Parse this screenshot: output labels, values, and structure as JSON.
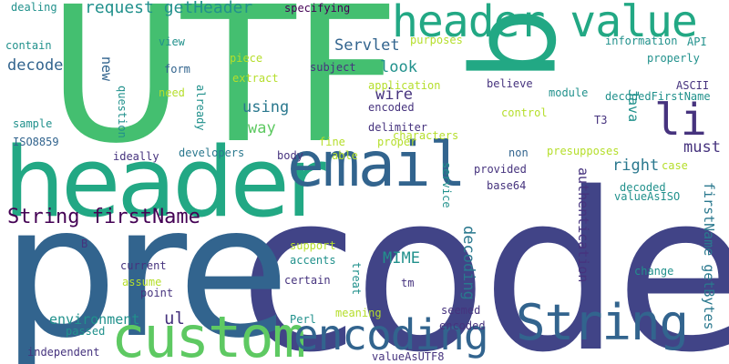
{
  "palette": {
    "dark_purple": "#46337e",
    "indigo": "#414487",
    "blue": "#32648e",
    "teal_blue": "#2a788e",
    "teal": "#21918c",
    "green_teal": "#22a884",
    "green": "#44bf70",
    "light_green": "#5ec962",
    "lime": "#b5de2b",
    "deep_purple": "#440154"
  },
  "words": {
    "code": "code",
    "pre": "pre",
    "utf": "UTF",
    "q": "q",
    "header": "header",
    "header_value": "header value",
    "email": "email",
    "custom": "custom",
    "encoding": "encoding",
    "string_big": "String",
    "string_firstname": "String firstName",
    "li": "li",
    "request_getheader": "request getHeader",
    "servlet": "Servlet",
    "decode": "decode",
    "look": "look",
    "using": "using",
    "way": "way",
    "must": "must",
    "right": "right",
    "wire": "wire",
    "mime": "MIME",
    "environment": "environment",
    "ul": "ul",
    "authentication": "authentication",
    "decoding": "decoding",
    "firstname_getbytes": "firstName getBytes",
    "java": "Java",
    "new": "new",
    "question": "question",
    "dealing": "dealing",
    "specifying": "specifying",
    "contain": "contain",
    "purposes": "purposes",
    "information": "information",
    "api": "API",
    "view": "view",
    "piece": "piece",
    "subject": "subject",
    "properly": "properly",
    "form": "form",
    "extract": "extract",
    "application": "application",
    "believe": "believe",
    "module": "module",
    "ascii": "ASCII",
    "need": "need",
    "already": "already",
    "decodedfirstname": "decodedFirstName",
    "encoded_1": "encoded",
    "control": "control",
    "sample": "sample",
    "delimiter": "delimiter",
    "t3": "T3",
    "iso8859": "ISO8859",
    "fine": "fine",
    "proper": "proper",
    "characters": "characters",
    "ideally": "ideally",
    "developers": "developers",
    "body": "body",
    "able": "able",
    "non": "non",
    "presupposes": "presupposes",
    "case": "case",
    "provided": "provided",
    "decoded": "decoded",
    "valueasiso": "valueAsISO",
    "base64": "base64",
    "service": "service",
    "support": "support",
    "b": "B",
    "current": "current",
    "accents": "accents",
    "assume": "assume",
    "point": "point",
    "certain": "certain",
    "treat": "treat",
    "tm": "tm",
    "change": "change",
    "perl": "Perl",
    "meaning": "meaning",
    "seemed": "seemed",
    "encoded_2": "encoded",
    "passed": "passed",
    "independent": "independent",
    "valueasutf8": "valueAsUTF8"
  }
}
